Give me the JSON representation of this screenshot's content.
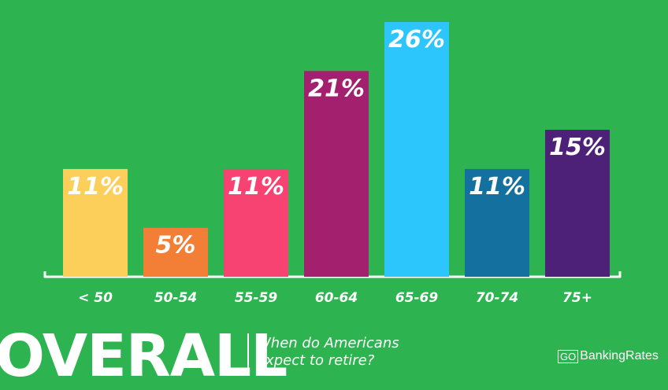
{
  "chart_data": {
    "type": "bar",
    "categories": [
      "< 50",
      "50-54",
      "55-59",
      "60-64",
      "65-69",
      "70-74",
      "75+"
    ],
    "values": [
      11,
      5,
      11,
      21,
      26,
      11,
      15
    ],
    "value_labels": [
      "11%",
      "5%",
      "11%",
      "21%",
      "26%",
      "11%",
      "15%"
    ],
    "colors": [
      "#fccf5a",
      "#f27f35",
      "#f64372",
      "#a3206e",
      "#2cc6fd",
      "#14709e",
      "#4d2177"
    ],
    "ylim": [
      0,
      26
    ],
    "grid": false,
    "legend": "none"
  },
  "footer": {
    "title": "OVERALL",
    "subtitle_line1": "When do Americans",
    "subtitle_line2": "expect to retire?"
  },
  "brand": {
    "go": "GO",
    "name": "BankingRates"
  },
  "colors": {
    "background": "#2db34f",
    "text": "#ffffff"
  }
}
